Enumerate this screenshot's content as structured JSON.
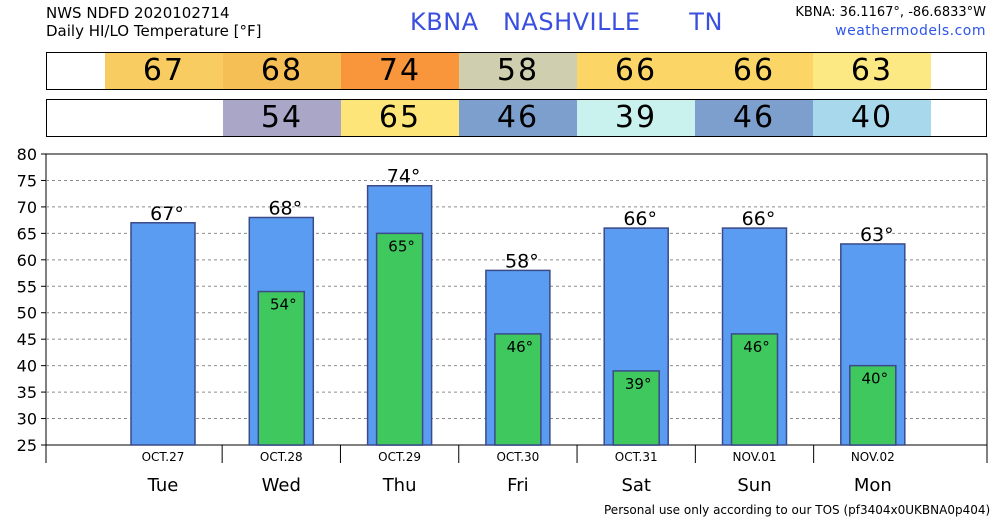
{
  "header": {
    "line1": "NWS NDFD 2020102714",
    "line2": "Daily HI/LO Temperature [°F]",
    "title": "KBNA   NASHVILLE      TN",
    "coords": "KBNA: 36.1167°, -86.6833°W",
    "site": "weathermodels.com"
  },
  "footer": "Personal use only according to our TOS (pf3404x0UKBNA0p404)",
  "colors": {
    "hi_bar": "#5b9cf3",
    "lo_bar": "#3ec85e",
    "bar_border": "#3b4a88",
    "grid": "#8c8c8c"
  },
  "strips": {
    "hi": [
      {
        "label": "67",
        "color": "#f8cc60"
      },
      {
        "label": "68",
        "color": "#f6bf55"
      },
      {
        "label": "74",
        "color": "#f9953a"
      },
      {
        "label": "58",
        "color": "#cfcfb0"
      },
      {
        "label": "66",
        "color": "#fbd666"
      },
      {
        "label": "66",
        "color": "#fbd666"
      },
      {
        "label": "63",
        "color": "#fde983"
      }
    ],
    "lo": [
      {
        "label": "",
        "color": "#ffffff"
      },
      {
        "label": "54",
        "color": "#a9a6c8"
      },
      {
        "label": "65",
        "color": "#fde57a"
      },
      {
        "label": "46",
        "color": "#7c9fcd"
      },
      {
        "label": "39",
        "color": "#c9f2ee"
      },
      {
        "label": "46",
        "color": "#7c9fcd"
      },
      {
        "label": "40",
        "color": "#a7d8ec"
      }
    ]
  },
  "chart_data": {
    "type": "bar",
    "title": "Daily HI/LO Temperature [°F]",
    "ylim": [
      25,
      80
    ],
    "yticks": [
      25,
      30,
      35,
      40,
      45,
      50,
      55,
      60,
      65,
      70,
      75,
      80
    ],
    "grid": true,
    "categories": [
      "Tue",
      "Wed",
      "Thu",
      "Fri",
      "Sat",
      "Sun",
      "Mon"
    ],
    "dates": [
      "OCT.27",
      "OCT.28",
      "OCT.29",
      "OCT.30",
      "OCT.31",
      "NOV.01",
      "NOV.02"
    ],
    "series": [
      {
        "name": "HI",
        "values": [
          67,
          68,
          74,
          58,
          66,
          66,
          63
        ],
        "labels": [
          "67°",
          "68°",
          "74°",
          "58°",
          "66°",
          "66°",
          "63°"
        ]
      },
      {
        "name": "LO",
        "values": [
          null,
          54,
          65,
          46,
          39,
          46,
          40
        ],
        "labels": [
          "",
          "54°",
          "65°",
          "46°",
          "39°",
          "46°",
          "40°"
        ]
      }
    ]
  }
}
